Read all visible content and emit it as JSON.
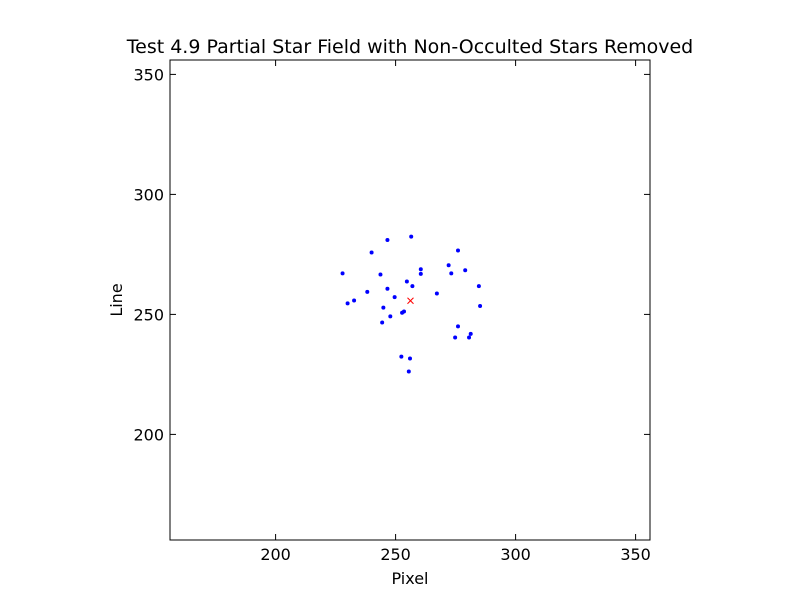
{
  "chart_data": {
    "type": "scatter",
    "title": "Test 4.9 Partial Star Field with Non-Occulted Stars Removed",
    "xlabel": "Pixel",
    "ylabel": "Line",
    "xlim": [
      156,
      356
    ],
    "ylim": [
      156,
      356
    ],
    "xticks": [
      200,
      250,
      300,
      350
    ],
    "yticks": [
      200,
      250,
      300,
      350
    ],
    "grid": false,
    "series": [
      {
        "marker": "dot",
        "color": "#0000ff",
        "points": [
          [
            256.5,
            282.4
          ],
          [
            246.6,
            281.0
          ],
          [
            240.0,
            275.8
          ],
          [
            276.0,
            276.6
          ],
          [
            227.9,
            267.1
          ],
          [
            243.7,
            266.6
          ],
          [
            260.5,
            268.8
          ],
          [
            260.5,
            266.9
          ],
          [
            272.1,
            270.5
          ],
          [
            273.2,
            267.1
          ],
          [
            279.0,
            268.4
          ],
          [
            254.7,
            263.7
          ],
          [
            257.0,
            261.8
          ],
          [
            284.7,
            261.8
          ],
          [
            246.6,
            260.7
          ],
          [
            238.2,
            259.4
          ],
          [
            267.2,
            258.7
          ],
          [
            249.6,
            257.2
          ],
          [
            232.7,
            255.8
          ],
          [
            230.0,
            254.6
          ],
          [
            244.9,
            252.8
          ],
          [
            285.2,
            253.5
          ],
          [
            253.5,
            251.2
          ],
          [
            252.7,
            250.7
          ],
          [
            247.8,
            249.2
          ],
          [
            244.4,
            246.6
          ],
          [
            276.0,
            245.0
          ],
          [
            281.3,
            241.9
          ],
          [
            274.8,
            240.4
          ],
          [
            280.6,
            240.4
          ],
          [
            252.4,
            232.4
          ],
          [
            256.0,
            231.6
          ],
          [
            255.5,
            226.2
          ]
        ]
      },
      {
        "marker": "x",
        "color": "#ff0000",
        "points": [
          [
            256.2,
            255.7
          ]
        ]
      }
    ]
  }
}
